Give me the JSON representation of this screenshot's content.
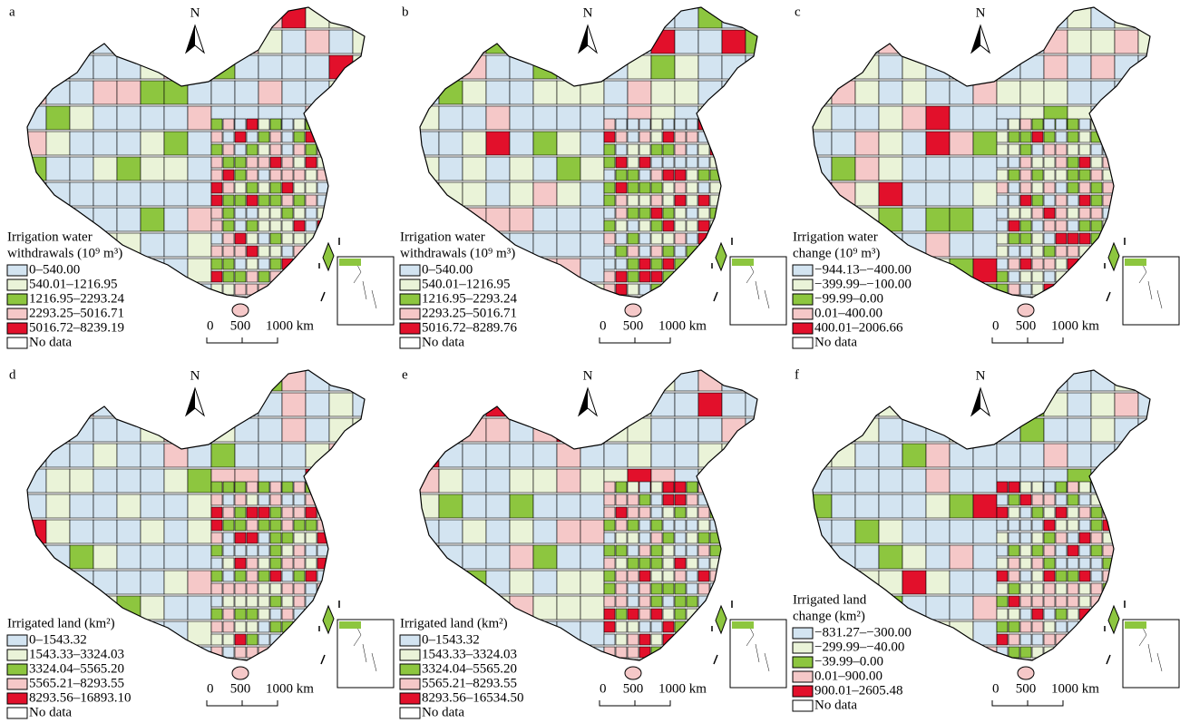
{
  "colors": [
    "#d3e4f1",
    "#eaf3d8",
    "#8dc63f",
    "#f5c8c8",
    "#e2102b"
  ],
  "panels": [
    {
      "label": "a",
      "north": "N",
      "legend": {
        "title": [
          "Irrigation water",
          "withdrawals (10⁹ m³)"
        ],
        "items": [
          "0–540.00",
          "540.01–1216.95",
          "1216.95–2293.24",
          "2293.25–5016.71",
          "5016.72–8239.19"
        ],
        "no_data": "No data"
      },
      "scale": [
        "0",
        "500",
        "1000 km"
      ]
    },
    {
      "label": "b",
      "north": "N",
      "legend": {
        "title": [
          "Irrigation water",
          "withdrawals (10⁹ m³)"
        ],
        "items": [
          "0–540.00",
          "540.01–1216.95",
          "1216.95–2293.24",
          "2293.25–5016.71",
          "5016.72–8289.76"
        ],
        "no_data": "No data"
      },
      "scale": [
        "0",
        "500",
        "1000 km"
      ]
    },
    {
      "label": "c",
      "north": "N",
      "legend": {
        "title": [
          "Irrigation water",
          "change (10⁹ m³)"
        ],
        "items": [
          "−944.13–−400.00",
          "−399.99–−100.00",
          "−99.99–0.00",
          "0.01–400.00",
          "400.01–2006.66"
        ],
        "no_data": "No data"
      },
      "scale": [
        "0",
        "500",
        "1000 km"
      ]
    },
    {
      "label": "d",
      "north": "N",
      "legend": {
        "title": [
          "Irrigated land (km²)"
        ],
        "items": [
          "0–1543.32",
          "1543.33–3324.03",
          "3324.04–5565.20",
          "5565.21–8293.55",
          "8293.56–16893.10"
        ],
        "no_data": "No data"
      },
      "scale": [
        "0",
        "500",
        "1000 km"
      ]
    },
    {
      "label": "e",
      "north": "N",
      "legend": {
        "title": [
          "Irrigated land (km²)"
        ],
        "items": [
          "0–1543.32",
          "1543.33–3324.03",
          "3324.04–5565.20",
          "5565.21–8293.55",
          "8293.56–16534.50"
        ],
        "no_data": "No data"
      },
      "scale": [
        "0",
        "500",
        "1000 km"
      ]
    },
    {
      "label": "f",
      "north": "N",
      "legend": {
        "title": [
          "Irrigated land",
          "change (km²)"
        ],
        "items": [
          "−831.27–−300.00",
          "−299.99–−40.00",
          "−39.99–0.00",
          "0.01–900.00",
          "900.01–2605.48"
        ],
        "no_data": "No data"
      },
      "scale": [
        "0",
        "500",
        "1000 km"
      ]
    }
  ]
}
